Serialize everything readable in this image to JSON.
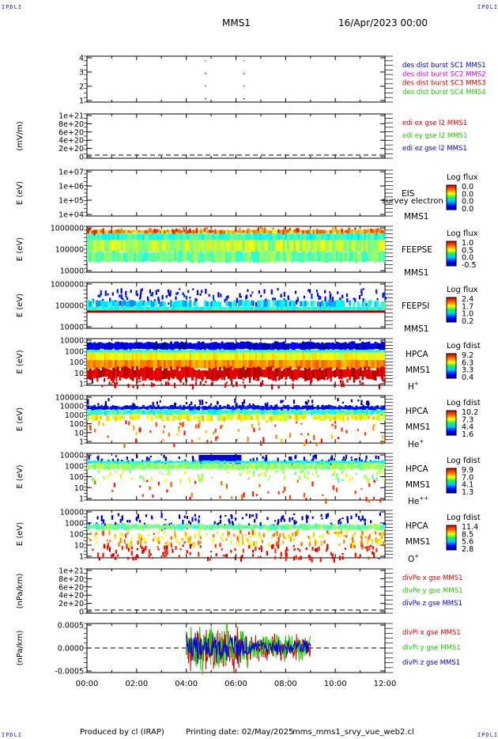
{
  "header": {
    "spacecraft": "MMS1",
    "datetime": "16/Apr/2023 00:00"
  },
  "corner_label": "IPDLI",
  "footer": {
    "produced_by": "Produced by cl (IRAP)",
    "printing_date": "Printing date: 02/May/2025",
    "script": "mms_mms1_srvy_vue_web2.cl"
  },
  "x_axis": {
    "tick_labels": [
      "00:00",
      "02:00",
      "04:00",
      "06:00",
      "08:00",
      "10:00",
      "12:00"
    ]
  },
  "colors": {
    "red": "#dd0000",
    "green": "#22cc00",
    "blue": "#0000dd",
    "magenta": "#dd00dd"
  },
  "chart_data": [
    {
      "id": "burst",
      "type": "scatter",
      "y_ticks": [
        "4",
        "3",
        "2",
        "1"
      ],
      "legend": [
        {
          "label": "des dist burst SC1 MMS1",
          "color": "#0000dd"
        },
        {
          "label": "des dist burst SC2 MMS2",
          "color": "#dd00dd"
        },
        {
          "label": "des dist burst SC3 MMS3",
          "color": "#dd0000"
        },
        {
          "label": "des dist burst SC4 MMS4",
          "color": "#22cc00"
        }
      ],
      "x_hours": [
        4.75,
        6.3
      ]
    },
    {
      "id": "edi",
      "type": "line",
      "ylabel": "(mV/m)",
      "y_ticks": [
        "1e+21",
        "8e+20",
        "6e+20",
        "4e+20",
        "2e+20",
        "0"
      ],
      "legend": [
        {
          "label": "edi ex gse l2 MMS1",
          "color": "#dd0000"
        },
        {
          "label": "edi ey gse l2 MMS1",
          "color": "#22cc00"
        },
        {
          "label": "edi ez gse l2 MMS1",
          "color": "#0000dd"
        }
      ]
    },
    {
      "id": "eis",
      "type": "heatmap",
      "ylabel": "E (eV)",
      "y_ticks": [
        "1e+07",
        "1e+06",
        "1e+05",
        "1e+04"
      ],
      "instrument": "EIS",
      "overlay": "survey electron to",
      "sc": "MMS1",
      "cbar_title": "Log flux",
      "cbar_ticks": [
        "0.0",
        "0.0",
        "0.0",
        "0.0"
      ]
    },
    {
      "id": "feepse",
      "type": "heatmap",
      "ylabel": "E (eV)",
      "y_ticks": [
        "1000000",
        "100000",
        "10000"
      ],
      "instrument": "FEEPSE",
      "sc": "MMS1",
      "cbar_title": "Log flux",
      "cbar_ticks": [
        "1.0",
        "0.5",
        "0.0",
        "-0.5"
      ]
    },
    {
      "id": "feepsi",
      "type": "heatmap",
      "ylabel": "E (eV)",
      "y_ticks": [
        "1000000",
        "100000",
        "10000"
      ],
      "instrument": "FEEPSI",
      "sc": "MMS1",
      "cbar_title": "Log flux",
      "cbar_ticks": [
        "2.4",
        "1.7",
        "1.0",
        "0.2"
      ]
    },
    {
      "id": "hpca_h",
      "type": "heatmap",
      "ylabel": "E (eV)",
      "y_ticks": [
        "10000",
        "1000",
        "100",
        "10",
        "1"
      ],
      "instrument": "HPCA",
      "sc": "MMS1",
      "species": "H",
      "charge": "+",
      "cbar_title": "Log fdist",
      "cbar_ticks": [
        "9.2",
        "6.3",
        "3.3",
        "0.4"
      ]
    },
    {
      "id": "hpca_he1",
      "type": "heatmap",
      "ylabel": "E (eV)",
      "y_ticks": [
        "100000",
        "10000",
        "1000",
        "100",
        "10",
        "1"
      ],
      "instrument": "HPCA",
      "sc": "MMS1",
      "species": "He",
      "charge": "+",
      "cbar_title": "Log fdist",
      "cbar_ticks": [
        "10.2",
        "7.3",
        "4.4",
        "1.6"
      ]
    },
    {
      "id": "hpca_he2",
      "type": "heatmap",
      "ylabel": "E (eV)",
      "y_ticks": [
        "10000",
        "1000",
        "100",
        "10",
        "1"
      ],
      "instrument": "HPCA",
      "sc": "MMS1",
      "species": "He",
      "charge": "++",
      "cbar_title": "Log fdist",
      "cbar_ticks": [
        "9.9",
        "7.0",
        "4.1",
        "1.3"
      ]
    },
    {
      "id": "hpca_o",
      "type": "heatmap",
      "ylabel": "E (eV)",
      "y_ticks": [
        "10000",
        "1000",
        "100",
        "10",
        "1"
      ],
      "instrument": "HPCA",
      "sc": "MMS1",
      "species": "O",
      "charge": "+",
      "cbar_title": "Log fdist",
      "cbar_ticks": [
        "11.4",
        "8.5",
        "5.6",
        "2.8"
      ]
    },
    {
      "id": "divpe",
      "type": "line",
      "ylabel": "(nPa/km)",
      "y_ticks": [
        "1e+21",
        "8e+20",
        "6e+20",
        "4e+20",
        "2e+20",
        "0"
      ],
      "legend": [
        {
          "label": "divPe x gse MMS1",
          "color": "#dd0000"
        },
        {
          "label": "divPe y gse MMS1",
          "color": "#22cc00"
        },
        {
          "label": "divPe z gse MMS1",
          "color": "#0000dd"
        }
      ]
    },
    {
      "id": "divpi",
      "type": "line",
      "ylabel": "(nPa/km)",
      "y_ticks": [
        "0.0005",
        "0.0000",
        "-0.0005"
      ],
      "legend": [
        {
          "label": "divPi x gse MMS1",
          "color": "#dd0000"
        },
        {
          "label": "divPi y gse MMS1",
          "color": "#22cc00"
        },
        {
          "label": "divPi z gse MMS1",
          "color": "#0000dd"
        }
      ],
      "x_range_hours": [
        4.0,
        9.0
      ],
      "amplitude": 0.0006
    }
  ]
}
